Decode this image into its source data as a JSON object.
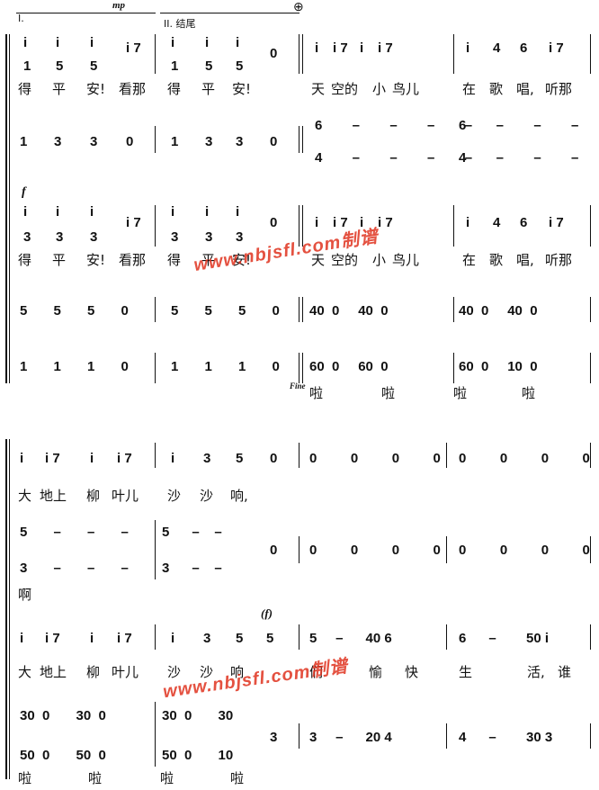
{
  "markings": {
    "volta1": "I.",
    "volta2": "II. 结尾",
    "dyn_mp": "mp",
    "dyn_f": "f",
    "dyn_f_paren": "(f)",
    "coda": "⊕",
    "fine": "Fine"
  },
  "system1": {
    "lyrics_top": [
      "得",
      "平",
      "安!",
      "看那",
      "得",
      "平",
      "安!",
      "天",
      "空的",
      "小",
      "鸟儿",
      "在",
      "歌",
      "唱,",
      "听那"
    ],
    "lyrics_mid": [
      "得",
      "平",
      "安!",
      "看那",
      "得",
      "平",
      "安!",
      "天",
      "空的",
      "小",
      "鸟儿",
      "在",
      "歌",
      "唱,",
      "听那"
    ],
    "lyrics_bottom": [
      "啦",
      "啦",
      "啦",
      "啦"
    ]
  },
  "system2": {
    "lyrics_top": [
      "大",
      "地上",
      "柳",
      "叶儿",
      "沙",
      "沙",
      "响,"
    ],
    "lyrics_alto": [
      "啊"
    ],
    "lyrics_mid": [
      "大",
      "地上",
      "柳",
      "叶儿",
      "沙",
      "沙",
      "响",
      "们",
      "愉",
      "快",
      "生",
      "活,",
      "谁"
    ],
    "lyrics_bottom": [
      "啦",
      "啦",
      "啦",
      "啦"
    ]
  },
  "watermark": {
    "text1": "www.nbjsfl.com制谱",
    "text2": "www.nbjsfl.com制谱"
  }
}
